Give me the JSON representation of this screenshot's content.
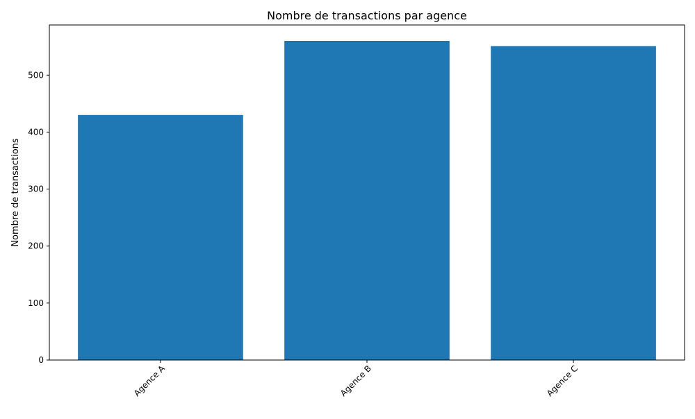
{
  "chart_data": {
    "type": "bar",
    "title": "Nombre de transactions par agence",
    "xlabel": "",
    "ylabel": "Nombre de transactions",
    "categories": [
      "Agence A",
      "Agence B",
      "Agence C"
    ],
    "values": [
      430,
      560,
      551
    ],
    "ylim": [
      0,
      588
    ],
    "yticks": [
      0,
      100,
      200,
      300,
      400,
      500
    ],
    "xtick_rotation_deg": 45,
    "grid": false,
    "legend": "none",
    "bar_color": "#1f77b4"
  }
}
